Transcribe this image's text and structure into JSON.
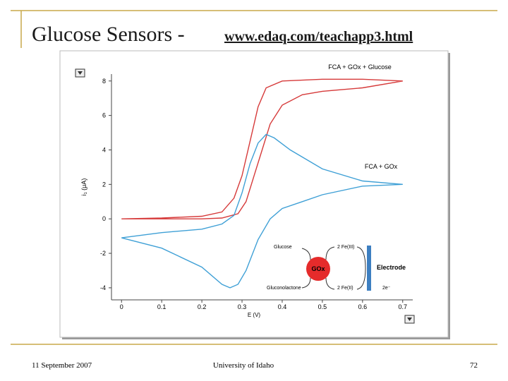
{
  "slide": {
    "title": "Glucose Sensors - ",
    "link": "www.edaq.com/teachapp3.html",
    "date": "11 September 2007",
    "organization": "University of Idaho",
    "page": "72"
  },
  "diagram": {
    "glucose": "Glucose",
    "fe3": "2 Fe(III)",
    "enzyme": "GOx",
    "electrode": "Electrode",
    "product": "Gluconolactone",
    "fe2": "2 Fe(II)",
    "electrons": "2e⁻"
  },
  "chart_data": {
    "type": "line",
    "x_label": "E (V)",
    "y_label": "i₁ (μA)",
    "annotations": [
      "FCA + GOx + Glucose",
      "FCA + GOx"
    ],
    "xlim": [
      -0.025,
      0.725
    ],
    "xticks": [
      0,
      0.1,
      0.2,
      0.3,
      0.4,
      0.5,
      0.6,
      0.7
    ],
    "ylim": [
      -4.7,
      8.4
    ],
    "yticks": [
      -4,
      -2,
      0,
      2,
      4,
      6,
      8
    ],
    "series": [
      {
        "name": "FCA + GOx + Glucose",
        "color": "#d63a3a",
        "x": [
          0,
          0.1,
          0.2,
          0.25,
          0.28,
          0.3,
          0.32,
          0.34,
          0.36,
          0.4,
          0.5,
          0.6,
          0.7,
          0.6,
          0.5,
          0.45,
          0.4,
          0.37,
          0.35,
          0.33,
          0.31,
          0.29,
          0.25,
          0.2,
          0
        ],
        "values": [
          0,
          0.05,
          0.15,
          0.4,
          1.2,
          2.5,
          4.5,
          6.5,
          7.6,
          8.0,
          8.1,
          8.1,
          8.0,
          7.6,
          7.4,
          7.2,
          6.6,
          5.5,
          4.0,
          2.5,
          1.0,
          0.3,
          0.05,
          0,
          0
        ]
      },
      {
        "name": "FCA + GOx",
        "color": "#3fa0d6",
        "x": [
          0,
          0.1,
          0.2,
          0.25,
          0.28,
          0.3,
          0.32,
          0.34,
          0.36,
          0.38,
          0.42,
          0.5,
          0.6,
          0.7,
          0.6,
          0.5,
          0.45,
          0.4,
          0.37,
          0.34,
          0.31,
          0.29,
          0.27,
          0.25,
          0.2,
          0.1,
          0
        ],
        "values": [
          -1.1,
          -0.8,
          -0.6,
          -0.3,
          0.2,
          1.5,
          3.2,
          4.4,
          4.9,
          4.7,
          4.0,
          2.9,
          2.2,
          2.0,
          1.9,
          1.4,
          1.0,
          0.6,
          0,
          -1.2,
          -3.0,
          -3.8,
          -4.0,
          -3.8,
          -2.8,
          -1.7,
          -1.1
        ]
      }
    ]
  }
}
